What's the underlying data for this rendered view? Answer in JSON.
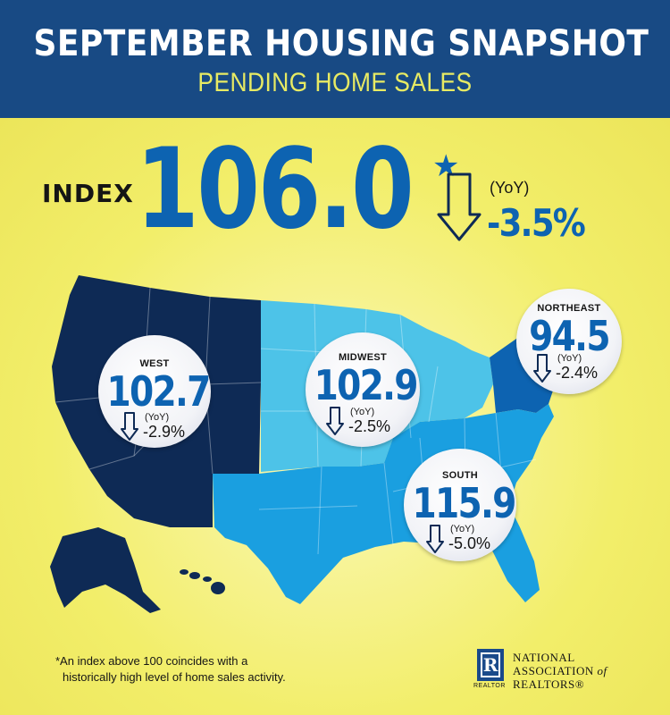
{
  "header": {
    "title": "SEPTEMBER  HOUSING SNAPSHOT",
    "subtitle": "PENDING HOME SALES"
  },
  "index": {
    "label": "INDEX",
    "value": "106.0",
    "asterisk": "*",
    "yoy_label": "(YoY)",
    "change": "-3.5%",
    "direction": "down"
  },
  "regions": [
    {
      "name": "WEST",
      "value": "102.7",
      "yoy_label": "(YoY)",
      "change": "-2.9%",
      "direction": "down"
    },
    {
      "name": "MIDWEST",
      "value": "102.9",
      "yoy_label": "(YoY)",
      "change": "-2.5%",
      "direction": "down"
    },
    {
      "name": "NORTHEAST",
      "value": "94.5",
      "yoy_label": "(YoY)",
      "change": "-2.4%",
      "direction": "down"
    },
    {
      "name": "SOUTH",
      "value": "115.9",
      "yoy_label": "(YoY)",
      "change": "-5.0%",
      "direction": "down"
    }
  ],
  "region_colors": {
    "west": "#0e2a55",
    "midwest": "#4dc3e8",
    "northeast": "#0d63b1",
    "south": "#1a9fe0"
  },
  "footnote": {
    "line1": "*An index above 100 coincides with a",
    "line2": "historically high level of home sales activity."
  },
  "logo": {
    "mark": "R",
    "tag": "REALTOR",
    "line1": "NATIONAL",
    "line2_main": "ASSOCIATION",
    "line2_italic": "of",
    "line3": "REALTORS®"
  }
}
